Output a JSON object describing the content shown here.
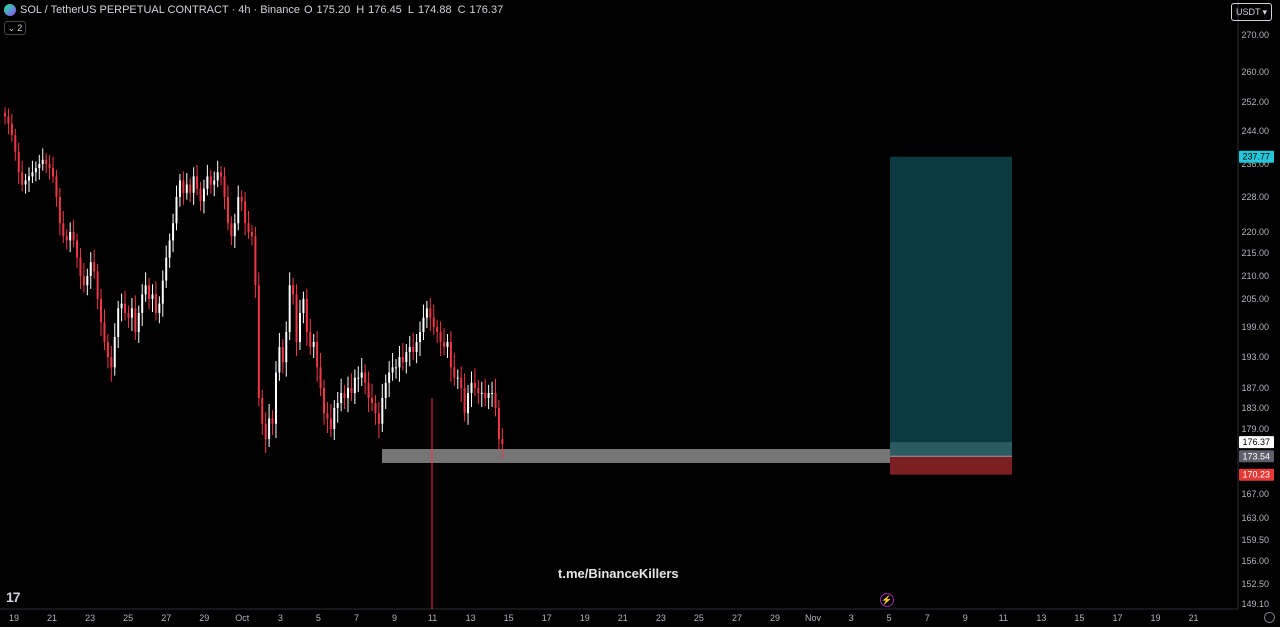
{
  "header": {
    "symbol": "SOL / TetherUS PERPETUAL CONTRACT · 4h · Binance",
    "o_label": "O",
    "o_value": "175.20",
    "h_label": "H",
    "h_value": "176.45",
    "l_label": "L",
    "l_value": "174.88",
    "c_label": "C",
    "c_value": "176.37"
  },
  "indicator_count": "2",
  "currency_label": "USDT",
  "watermark": "t.me/BinanceKillers",
  "logo": "17",
  "colors": {
    "up": "#ffffff",
    "down": "#f23645",
    "target": "#0b3a40",
    "stop": "#7a1f22",
    "entry_band": "#2e5f66",
    "support_zone": "#8a8a8a",
    "target_label": "#26c6da",
    "stop_label": "#e53935"
  },
  "chart_data": {
    "type": "candlestick",
    "symbol": "SOLUSDT",
    "interval": "4h",
    "y_ticks": [
      "270.00",
      "260.00",
      "252.00",
      "244.00",
      "236.00",
      "228.00",
      "220.00",
      "215.00",
      "210.00",
      "205.00",
      "199.00",
      "193.00",
      "187.00",
      "183.00",
      "179.00",
      "173.00",
      "170.00",
      "167.00",
      "163.00",
      "159.50",
      "156.00",
      "152.50",
      "149.10"
    ],
    "x_ticks": [
      "19",
      "21",
      "23",
      "25",
      "27",
      "29",
      "Oct",
      "3",
      "5",
      "7",
      "9",
      "11",
      "13",
      "15",
      "17",
      "19",
      "21",
      "23",
      "25",
      "27",
      "29",
      "Nov",
      "3",
      "5",
      "7",
      "9",
      "11",
      "13",
      "15",
      "17",
      "19",
      "21"
    ],
    "last_price": "176.37",
    "entry_price": "173.54",
    "target_price": "237.77",
    "stop_price": "170.23",
    "support_zone": [
      172.3,
      175.0
    ],
    "series": [
      {
        "values": [
          248,
          246,
          243,
          239,
          234,
          231,
          232,
          233,
          234,
          235,
          236,
          237,
          236,
          235,
          233,
          228,
          222,
          219,
          218,
          220,
          218,
          214,
          210,
          208,
          210,
          213,
          211,
          205,
          200,
          196,
          193,
          191,
          197,
          203,
          204,
          202,
          201,
          203,
          198,
          202,
          206,
          208,
          205,
          206,
          202,
          204,
          209,
          214,
          218,
          222,
          228,
          232,
          229,
          231,
          229,
          233,
          230,
          227,
          230,
          233,
          231,
          232,
          234,
          233,
          228,
          222,
          219,
          222,
          228,
          227,
          222,
          220,
          219,
          208,
          185,
          180,
          177,
          181,
          180,
          190,
          195,
          192,
          198,
          208,
          206,
          196,
          202,
          205,
          198,
          195,
          196,
          191,
          187,
          182,
          181,
          179,
          183,
          184,
          186,
          185,
          187,
          186,
          189,
          189,
          190,
          188,
          185,
          184,
          182,
          180,
          185,
          188,
          190,
          191,
          191,
          193,
          192,
          194,
          195,
          194,
          196,
          198,
          201,
          203,
          201,
          199,
          198,
          196,
          195,
          196,
          191,
          189,
          189,
          187,
          182,
          186,
          188,
          187,
          186,
          186,
          185,
          186,
          186,
          183,
          177,
          176
        ],
        "name": ""
      }
    ]
  }
}
